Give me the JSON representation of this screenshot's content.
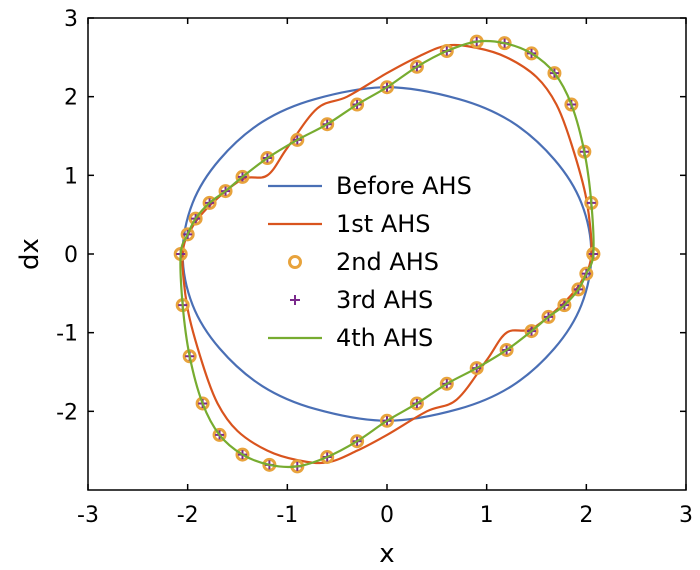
{
  "chart_data": {
    "type": "line",
    "title": "",
    "xlabel": "x",
    "ylabel": "dx",
    "xlim": [
      -3,
      3
    ],
    "ylim": [
      -3,
      3
    ],
    "xticks": [
      "-3",
      "-2",
      "-1",
      "0",
      "1",
      "2",
      "3"
    ],
    "yticks": [
      "3",
      "2",
      "1",
      "0",
      "-1",
      "-2"
    ],
    "grid": false,
    "legend_position": "center",
    "series": [
      {
        "name": "Before AHS",
        "style": "line",
        "color": "#4a6fb5",
        "x": [
          2.05,
          1.95,
          1.68,
          1.25,
          0.72,
          0.0,
          -0.72,
          -1.25,
          -1.68,
          -1.95,
          -2.05,
          -1.95,
          -1.68,
          -1.25,
          -0.72,
          0.0,
          0.72,
          1.25,
          1.68,
          1.95,
          2.05
        ],
        "y": [
          0.0,
          0.65,
          1.2,
          1.68,
          1.97,
          2.12,
          1.97,
          1.68,
          1.2,
          0.65,
          0.0,
          -0.65,
          -1.2,
          -1.68,
          -1.97,
          -2.12,
          -1.97,
          -1.68,
          -1.2,
          -0.65,
          0.0
        ]
      },
      {
        "name": "1st AHS",
        "style": "line",
        "color": "#d9541e",
        "x": [
          2.05,
          2.0,
          1.85,
          1.7,
          1.5,
          1.2,
          0.9,
          0.6,
          0.3,
          0.0,
          -0.4,
          -0.7,
          -1.0,
          -1.2,
          -1.45,
          -1.75,
          -1.95,
          -2.05,
          -2.0,
          -1.85,
          -1.7,
          -1.5,
          -1.2,
          -0.9,
          -0.6,
          -0.3,
          0.0,
          0.4,
          0.7,
          1.0,
          1.2,
          1.45,
          1.75,
          1.95,
          2.05
        ],
        "y": [
          0.0,
          0.7,
          1.4,
          1.9,
          2.25,
          2.5,
          2.62,
          2.65,
          2.5,
          2.3,
          2.0,
          1.85,
          1.35,
          1.0,
          0.95,
          0.65,
          0.35,
          0.0,
          -0.7,
          -1.4,
          -1.9,
          -2.25,
          -2.5,
          -2.62,
          -2.65,
          -2.5,
          -2.3,
          -2.0,
          -1.85,
          -1.35,
          -1.0,
          -0.95,
          -0.65,
          -0.35,
          0.0
        ]
      },
      {
        "name": "2nd AHS",
        "style": "markers-o",
        "color": "#e8a33c",
        "x": [
          2.07,
          2.05,
          1.98,
          1.85,
          1.68,
          1.45,
          1.18,
          0.9,
          0.6,
          0.3,
          0.0,
          -0.3,
          -0.6,
          -0.9,
          -1.2,
          -1.45,
          -1.62,
          -1.78,
          -1.92,
          -2.0,
          -2.07,
          -2.05,
          -1.98,
          -1.85,
          -1.68,
          -1.45,
          -1.18,
          -0.9,
          -0.6,
          -0.3,
          0.0,
          0.3,
          0.6,
          0.9,
          1.2,
          1.45,
          1.62,
          1.78,
          1.92,
          2.0,
          2.07
        ],
        "y": [
          0.0,
          0.65,
          1.3,
          1.9,
          2.3,
          2.55,
          2.68,
          2.7,
          2.58,
          2.38,
          2.12,
          1.9,
          1.65,
          1.45,
          1.22,
          0.98,
          0.8,
          0.65,
          0.45,
          0.25,
          0.0,
          -0.65,
          -1.3,
          -1.9,
          -2.3,
          -2.55,
          -2.68,
          -2.7,
          -2.58,
          -2.38,
          -2.12,
          -1.9,
          -1.65,
          -1.45,
          -1.22,
          -0.98,
          -0.8,
          -0.65,
          -0.45,
          -0.25,
          0.0
        ]
      },
      {
        "name": "3rd AHS",
        "style": "markers-plus",
        "color": "#7a2a8c",
        "x": [
          2.07,
          2.05,
          1.98,
          1.85,
          1.68,
          1.45,
          1.18,
          0.9,
          0.6,
          0.3,
          0.0,
          -0.3,
          -0.6,
          -0.9,
          -1.2,
          -1.45,
          -1.62,
          -1.78,
          -1.92,
          -2.0,
          -2.07,
          -2.05,
          -1.98,
          -1.85,
          -1.68,
          -1.45,
          -1.18,
          -0.9,
          -0.6,
          -0.3,
          0.0,
          0.3,
          0.6,
          0.9,
          1.2,
          1.45,
          1.62,
          1.78,
          1.92,
          2.0,
          2.07
        ],
        "y": [
          0.0,
          0.65,
          1.3,
          1.9,
          2.3,
          2.55,
          2.68,
          2.7,
          2.58,
          2.38,
          2.12,
          1.9,
          1.65,
          1.45,
          1.22,
          0.98,
          0.8,
          0.65,
          0.45,
          0.25,
          0.0,
          -0.65,
          -1.3,
          -1.9,
          -2.3,
          -2.55,
          -2.68,
          -2.7,
          -2.58,
          -2.38,
          -2.12,
          -1.9,
          -1.65,
          -1.45,
          -1.22,
          -0.98,
          -0.8,
          -0.65,
          -0.45,
          -0.25,
          0.0
        ]
      },
      {
        "name": "4th AHS",
        "style": "line",
        "color": "#77ac30",
        "x": [
          2.07,
          2.05,
          1.98,
          1.85,
          1.68,
          1.45,
          1.18,
          0.9,
          0.6,
          0.3,
          0.0,
          -0.3,
          -0.6,
          -0.9,
          -1.2,
          -1.45,
          -1.62,
          -1.78,
          -1.92,
          -2.0,
          -2.07,
          -2.05,
          -1.98,
          -1.85,
          -1.68,
          -1.45,
          -1.18,
          -0.9,
          -0.6,
          -0.3,
          0.0,
          0.3,
          0.6,
          0.9,
          1.2,
          1.45,
          1.62,
          1.78,
          1.92,
          2.0,
          2.07
        ],
        "y": [
          0.0,
          0.65,
          1.3,
          1.9,
          2.3,
          2.55,
          2.68,
          2.7,
          2.58,
          2.38,
          2.12,
          1.9,
          1.65,
          1.45,
          1.22,
          0.98,
          0.8,
          0.65,
          0.45,
          0.25,
          0.0,
          -0.65,
          -1.3,
          -1.9,
          -2.3,
          -2.55,
          -2.68,
          -2.7,
          -2.58,
          -2.38,
          -2.12,
          -1.9,
          -1.65,
          -1.45,
          -1.22,
          -0.98,
          -0.8,
          -0.65,
          -0.45,
          -0.25,
          0.0
        ]
      }
    ]
  }
}
